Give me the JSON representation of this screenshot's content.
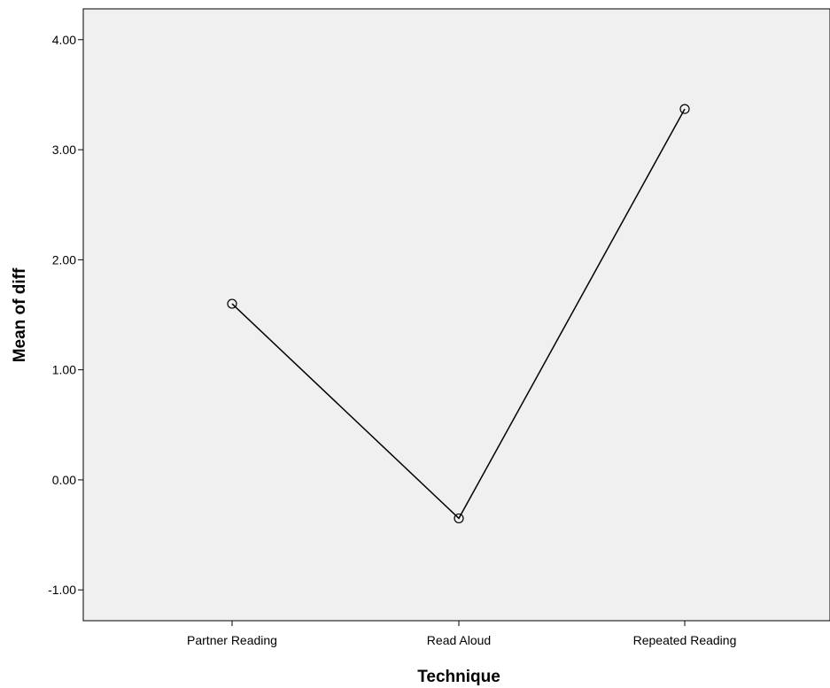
{
  "chart_data": {
    "type": "line",
    "title": "",
    "xlabel": "Technique",
    "ylabel": "Mean of diff",
    "categories": [
      "Partner Reading",
      "Read Aloud",
      "Repeated Reading"
    ],
    "series": [
      {
        "values": [
          1.6,
          -0.35,
          3.37
        ]
      }
    ],
    "ylim": [
      -1.28,
      4.28
    ],
    "yticks": [
      -1.0,
      0.0,
      1.0,
      2.0,
      3.0,
      4.0
    ],
    "ytick_labels": [
      "-1.00",
      "0.00",
      "1.00",
      "2.00",
      "3.00",
      "4.00"
    ],
    "grid": false,
    "marker": "open-circle",
    "colors": {
      "plot_background": "#f0f0f0",
      "line": "#000000"
    }
  }
}
